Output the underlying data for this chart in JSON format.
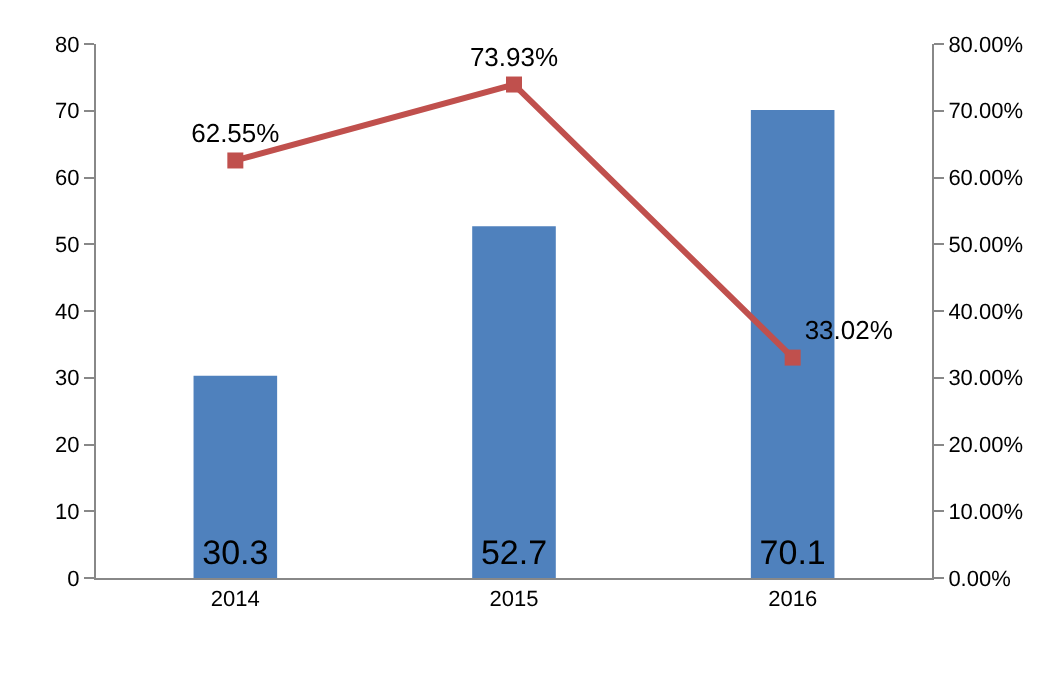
{
  "chart_data": {
    "type": "bar",
    "categories": [
      "2014",
      "2015",
      "2016"
    ],
    "series": [
      {
        "color": "#4f81bd",
        "values": [
          30.3,
          52.7,
          70.1
        ],
        "value_labels": [
          "30.3",
          "52.7",
          "70.1"
        ]
      },
      {
        "type": "line",
        "axis": "y2",
        "color": "#c0504d",
        "values": [
          62.55,
          73.93,
          33.02
        ],
        "value_labels": [
          "62.55%",
          "73.93%",
          "33.02%"
        ]
      }
    ],
    "ylim": [
      0,
      80
    ],
    "yticks": [
      0,
      10,
      20,
      30,
      40,
      50,
      60,
      70,
      80
    ],
    "y2lim": [
      0,
      80
    ],
    "y2ticks": [
      {
        "value": 0,
        "label": "0.00%"
      },
      {
        "value": 10,
        "label": "10.00%"
      },
      {
        "value": 20,
        "label": "20.00%"
      },
      {
        "value": 30,
        "label": "30.00%"
      },
      {
        "value": 40,
        "label": "40.00%"
      },
      {
        "value": 50,
        "label": "50.00%"
      },
      {
        "value": 60,
        "label": "60.00%"
      },
      {
        "value": 70,
        "label": "70.00%"
      },
      {
        "value": 80,
        "label": "80.00%"
      }
    ],
    "marker": "square",
    "line_style": "solid"
  }
}
